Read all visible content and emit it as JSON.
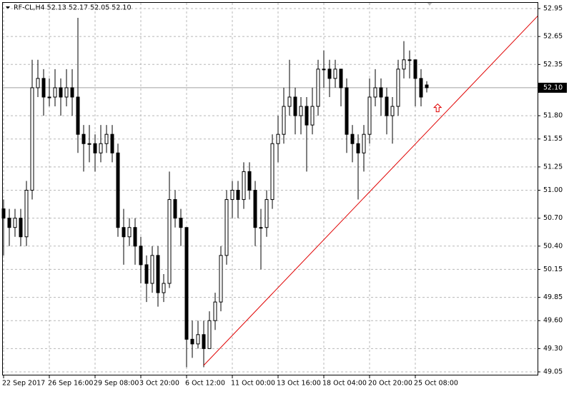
{
  "chart_data": {
    "type": "candlestick",
    "title": "RF-CL,H4  52.13 52.17 52.05 52.10",
    "categories": [
      "22 Sep 2017",
      null,
      null,
      null,
      null,
      null,
      null,
      null,
      "26 Sep 16:00",
      null,
      null,
      null,
      null,
      null,
      null,
      null,
      "29 Sep 08:00",
      null,
      null,
      null,
      null,
      null,
      null,
      null,
      "3 Oct 20:00",
      null,
      null,
      null,
      null,
      null,
      null,
      null,
      "6 Oct 12:00",
      null,
      null,
      null,
      null,
      null,
      null,
      null,
      "11 Oct 00:00",
      null,
      null,
      null,
      null,
      null,
      null,
      null,
      "13 Oct 16:00",
      null,
      null,
      null,
      null,
      null,
      null,
      null,
      "18 Oct 04:00",
      null,
      null,
      null,
      null,
      null,
      null,
      null,
      "20 Oct 20:00",
      null,
      null,
      null,
      null,
      null,
      null,
      null,
      "25 Oct 08:00",
      null,
      null
    ],
    "open": [
      50.8,
      50.7,
      50.6,
      50.7,
      50.5,
      51.0,
      52.1,
      52.2,
      52.0,
      52.0,
      52.1,
      52.0,
      52.1,
      52.0,
      51.6,
      51.5,
      51.5,
      51.4,
      51.5,
      51.6,
      51.4,
      50.6,
      50.5,
      50.6,
      50.4,
      50.2,
      50.0,
      50.3,
      49.9,
      50.0,
      50.9,
      50.7,
      50.6,
      49.4,
      49.35,
      49.45,
      49.3,
      49.6,
      49.8,
      50.3,
      50.9,
      51.0,
      50.9,
      51.2,
      51.0,
      50.6,
      50.6,
      50.9,
      51.5,
      51.6,
      51.9,
      52.0,
      51.8,
      51.9,
      51.7,
      51.9,
      52.3,
      52.3,
      52.2,
      52.3,
      52.1,
      51.6,
      51.5,
      51.4,
      51.6,
      52.0,
      52.1,
      52.0,
      51.8,
      51.9,
      52.3,
      52.4,
      52.4,
      52.2,
      52.13
    ],
    "high": [
      50.9,
      50.8,
      50.8,
      50.8,
      51.1,
      52.4,
      52.4,
      52.3,
      52.2,
      52.3,
      52.2,
      52.3,
      52.3,
      52.85,
      51.7,
      51.7,
      51.6,
      51.7,
      51.7,
      51.7,
      51.5,
      50.8,
      50.7,
      50.7,
      50.5,
      50.3,
      50.4,
      50.4,
      50.1,
      51.2,
      51.0,
      50.8,
      50.6,
      49.6,
      49.6,
      49.6,
      49.7,
      49.9,
      50.4,
      51.0,
      51.1,
      51.1,
      51.3,
      51.3,
      51.1,
      50.8,
      51.0,
      51.6,
      51.8,
      52.1,
      52.4,
      52.1,
      52.0,
      52.0,
      52.1,
      52.4,
      52.5,
      52.4,
      52.4,
      52.3,
      52.2,
      51.7,
      51.6,
      51.7,
      52.2,
      52.3,
      52.2,
      52.1,
      52.0,
      52.4,
      52.6,
      52.5,
      52.4,
      52.3,
      52.17
    ],
    "low": [
      50.3,
      50.4,
      50.5,
      50.4,
      50.4,
      50.9,
      52.0,
      51.8,
      51.9,
      51.9,
      51.8,
      51.9,
      51.8,
      51.4,
      51.2,
      51.3,
      51.2,
      51.3,
      51.4,
      51.3,
      50.5,
      50.2,
      50.4,
      50.2,
      50.0,
      49.8,
      49.9,
      49.75,
      49.8,
      49.95,
      50.6,
      50.4,
      49.1,
      49.2,
      49.3,
      49.1,
      49.3,
      49.5,
      49.7,
      50.2,
      50.7,
      50.7,
      50.8,
      50.9,
      50.4,
      50.15,
      50.5,
      50.8,
      51.3,
      51.5,
      51.8,
      51.6,
      51.6,
      51.2,
      51.6,
      51.8,
      52.1,
      52.0,
      52.1,
      51.9,
      51.4,
      51.3,
      50.9,
      51.2,
      51.5,
      51.9,
      51.8,
      51.6,
      51.5,
      51.8,
      52.2,
      52.2,
      51.9,
      51.9,
      52.05
    ],
    "close": [
      50.7,
      50.6,
      50.7,
      50.5,
      51.0,
      52.1,
      52.2,
      52.0,
      52.0,
      52.1,
      52.0,
      52.1,
      52.0,
      51.6,
      51.5,
      51.5,
      51.4,
      51.5,
      51.6,
      51.4,
      50.6,
      50.5,
      50.6,
      50.4,
      50.2,
      50.0,
      50.3,
      49.9,
      50.0,
      50.9,
      50.7,
      50.6,
      49.4,
      49.35,
      49.45,
      49.3,
      49.6,
      49.8,
      50.3,
      50.9,
      51.0,
      50.9,
      51.2,
      51.0,
      50.6,
      50.6,
      50.9,
      51.5,
      51.6,
      51.9,
      52.0,
      51.8,
      51.9,
      51.7,
      51.9,
      52.3,
      52.3,
      52.2,
      52.3,
      52.1,
      51.6,
      51.5,
      51.4,
      51.6,
      52.0,
      52.1,
      52.0,
      51.8,
      51.9,
      52.3,
      52.4,
      52.4,
      52.2,
      52.0,
      52.1
    ],
    "color": "#000000",
    "ylim": [
      49.05,
      52.95
    ],
    "yticks": [
      52.95,
      52.65,
      52.35,
      {
        "value": 51.8,
        "label": "51.80"
      },
      51.55,
      51.25,
      {
        "value": 51.0,
        "label": "51.00"
      },
      {
        "value": 50.7,
        "label": "50.70"
      },
      {
        "value": 50.4,
        "label": "50.40"
      },
      50.15,
      49.85,
      {
        "value": 49.6,
        "label": "49.60"
      },
      {
        "value": 49.3,
        "label": "49.30"
      },
      49.05
    ],
    "grid": true,
    "current_price": {
      "value": 52.1,
      "label": "52.10"
    },
    "trendline": {
      "color": "#e00000",
      "x": [
        35,
        93.4
      ],
      "values": [
        49.12,
        52.87
      ]
    },
    "arrow": {
      "x": 75.9,
      "value": 51.88,
      "color": "#e00000"
    }
  }
}
